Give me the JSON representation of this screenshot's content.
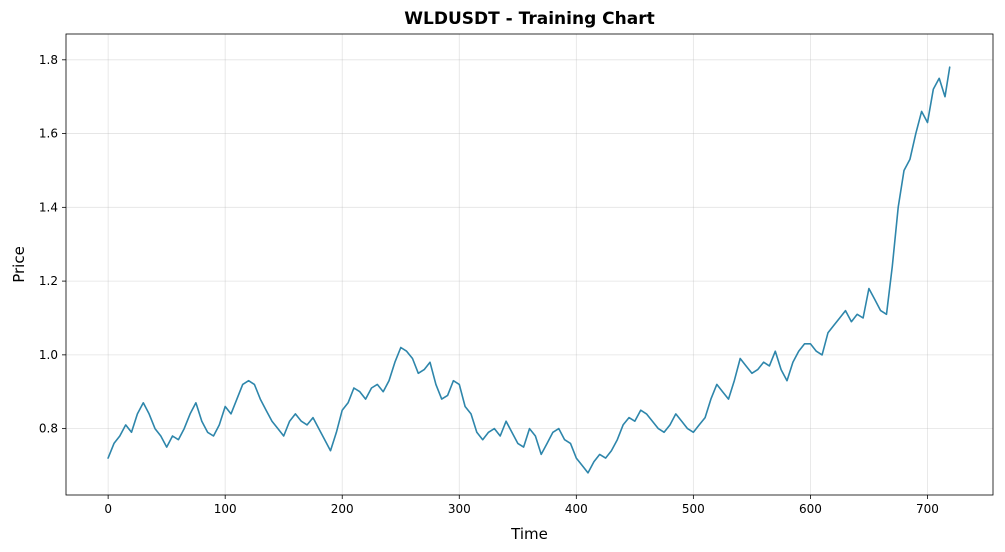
{
  "chart_data": {
    "type": "line",
    "title": "WLDUSDT - Training Chart",
    "xlabel": "Time",
    "ylabel": "Price",
    "xlim": [
      -36,
      756
    ],
    "ylim": [
      0.62,
      1.87
    ],
    "x_ticks": [
      0,
      100,
      200,
      300,
      400,
      500,
      600,
      700
    ],
    "y_ticks": [
      0.8,
      1.0,
      1.2,
      1.4,
      1.6,
      1.8
    ],
    "x_tick_labels": [
      "0",
      "100",
      "200",
      "300",
      "400",
      "500",
      "600",
      "700"
    ],
    "y_tick_labels": [
      "0.8",
      "1.0",
      "1.2",
      "1.4",
      "1.6",
      "1.8"
    ],
    "grid": true,
    "legend": "none",
    "series": [
      {
        "color": "#2e86ab",
        "x": [
          0,
          5,
          10,
          15,
          20,
          25,
          30,
          35,
          40,
          45,
          50,
          55,
          60,
          65,
          70,
          75,
          80,
          85,
          90,
          95,
          100,
          105,
          110,
          115,
          120,
          125,
          130,
          135,
          140,
          145,
          150,
          155,
          160,
          165,
          170,
          175,
          180,
          185,
          190,
          195,
          200,
          205,
          210,
          215,
          220,
          225,
          230,
          235,
          240,
          245,
          250,
          255,
          260,
          265,
          270,
          275,
          280,
          285,
          290,
          295,
          300,
          305,
          310,
          315,
          320,
          325,
          330,
          335,
          340,
          345,
          350,
          355,
          360,
          365,
          370,
          375,
          380,
          385,
          390,
          395,
          400,
          405,
          410,
          415,
          420,
          425,
          430,
          435,
          440,
          445,
          450,
          455,
          460,
          465,
          470,
          475,
          480,
          485,
          490,
          495,
          500,
          505,
          510,
          515,
          520,
          525,
          530,
          535,
          540,
          545,
          550,
          555,
          560,
          565,
          570,
          575,
          580,
          585,
          590,
          595,
          600,
          605,
          610,
          615,
          620,
          625,
          630,
          635,
          640,
          645,
          650,
          655,
          660,
          665,
          670,
          675,
          680,
          685,
          690,
          695,
          700,
          705,
          710,
          715,
          719
        ],
        "values": [
          0.72,
          0.76,
          0.78,
          0.81,
          0.79,
          0.84,
          0.87,
          0.84,
          0.8,
          0.78,
          0.75,
          0.78,
          0.77,
          0.8,
          0.84,
          0.87,
          0.82,
          0.79,
          0.78,
          0.81,
          0.86,
          0.84,
          0.88,
          0.92,
          0.93,
          0.92,
          0.88,
          0.85,
          0.82,
          0.8,
          0.78,
          0.82,
          0.84,
          0.82,
          0.81,
          0.83,
          0.8,
          0.77,
          0.74,
          0.79,
          0.85,
          0.87,
          0.91,
          0.9,
          0.88,
          0.91,
          0.92,
          0.9,
          0.93,
          0.98,
          1.02,
          1.01,
          0.99,
          0.95,
          0.96,
          0.98,
          0.92,
          0.88,
          0.89,
          0.93,
          0.92,
          0.86,
          0.84,
          0.79,
          0.77,
          0.79,
          0.8,
          0.78,
          0.82,
          0.79,
          0.76,
          0.75,
          0.8,
          0.78,
          0.73,
          0.76,
          0.79,
          0.8,
          0.77,
          0.76,
          0.72,
          0.7,
          0.68,
          0.71,
          0.73,
          0.72,
          0.74,
          0.77,
          0.81,
          0.83,
          0.82,
          0.85,
          0.84,
          0.82,
          0.8,
          0.79,
          0.81,
          0.84,
          0.82,
          0.8,
          0.79,
          0.81,
          0.83,
          0.88,
          0.92,
          0.9,
          0.88,
          0.93,
          0.99,
          0.97,
          0.95,
          0.96,
          0.98,
          0.97,
          1.01,
          0.96,
          0.93,
          0.98,
          1.01,
          1.03,
          1.03,
          1.01,
          1.0,
          1.06,
          1.08,
          1.1,
          1.12,
          1.09,
          1.11,
          1.1,
          1.18,
          1.15,
          1.12,
          1.11,
          1.24,
          1.4,
          1.5,
          1.53,
          1.6,
          1.66,
          1.63,
          1.72,
          1.75,
          1.7,
          1.78
        ]
      }
    ]
  }
}
